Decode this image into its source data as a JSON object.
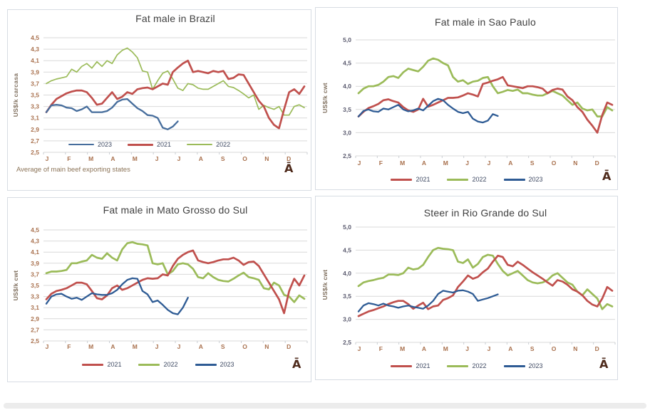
{
  "colors": {
    "red_2021": "#C0504D",
    "green_2022": "#9BBB59",
    "blue_2023_light": "#466D9C",
    "blue_2023_dark": "#2E5B94",
    "grid": "#D9D9D9",
    "axis_tick_mark": "#C9CDD2",
    "axis_title_text": "#80705F",
    "warm_axis_label": "#A9714E",
    "slate_axis_label": "#5A5A6E",
    "legend_text": "#3F4A63",
    "title_text": "#404040",
    "footnote_text": "#8B7357",
    "panel_border": "#D7DCE3",
    "logo_text": "#4E2A1B",
    "scrollbar": "#ECECEC"
  },
  "chart_data": [
    {
      "type": "line",
      "title": "Fat male in Brazil",
      "ylabel": "US$/k carcasa",
      "ylim": [
        2.5,
        4.5
      ],
      "ytick_step": 0.2,
      "ytick_labels": [
        "4,5",
        "4,3",
        "4,1",
        "3,9",
        "3,7",
        "3,5",
        "3,3",
        "3,1",
        "2,9",
        "2,7",
        "2,5"
      ],
      "ytick_color": "#A9714E",
      "xtick_color": "#A9714E",
      "categories": [
        "J",
        "F",
        "M",
        "A",
        "M",
        "J",
        "J",
        "A",
        "S",
        "O",
        "N",
        "D"
      ],
      "legend_position": "inside-bottom-left",
      "footnote": "Average  of main beef exporting states",
      "logo_glyph": "Ā",
      "series": [
        {
          "name": "2023",
          "color": "#466D9C",
          "values": [
            3.2,
            3.32,
            3.33,
            3.32,
            3.28,
            3.27,
            3.22,
            3.25,
            3.3,
            3.2,
            3.2,
            3.2,
            3.22,
            3.28,
            3.38,
            3.42,
            3.43,
            3.35,
            3.27,
            3.22,
            3.15,
            3.14,
            3.1,
            2.93,
            2.9,
            2.95,
            3.04
          ]
        },
        {
          "name": "2021",
          "color": "#C0504D",
          "values": [
            3.2,
            3.33,
            3.43,
            3.48,
            3.53,
            3.56,
            3.58,
            3.58,
            3.55,
            3.45,
            3.33,
            3.35,
            3.45,
            3.55,
            3.43,
            3.47,
            3.55,
            3.52,
            3.6,
            3.62,
            3.63,
            3.6,
            3.65,
            3.7,
            3.68,
            3.9,
            3.98,
            4.05,
            4.1,
            3.9,
            3.92,
            3.9,
            3.88,
            3.92,
            3.9,
            3.92,
            3.78,
            3.8,
            3.86,
            3.85,
            3.7,
            3.55,
            3.4,
            3.3,
            3.1,
            2.98,
            2.92,
            3.25,
            3.55,
            3.6,
            3.52,
            3.65
          ]
        },
        {
          "name": "2022",
          "color": "#9BBB59",
          "values": [
            3.7,
            3.75,
            3.78,
            3.8,
            3.82,
            3.95,
            3.9,
            4.0,
            4.05,
            3.97,
            4.08,
            4.0,
            4.1,
            4.05,
            4.2,
            4.28,
            4.32,
            4.25,
            4.15,
            3.92,
            3.9,
            3.6,
            3.75,
            3.88,
            3.92,
            3.78,
            3.62,
            3.58,
            3.7,
            3.68,
            3.62,
            3.6,
            3.6,
            3.65,
            3.7,
            3.75,
            3.65,
            3.63,
            3.58,
            3.52,
            3.45,
            3.5,
            3.25,
            3.32,
            3.28,
            3.25,
            3.3,
            3.15,
            3.15,
            3.3,
            3.33,
            3.28
          ]
        }
      ]
    },
    {
      "type": "line",
      "title": "Fat male in Sao Paulo",
      "ylabel": "US$/k cwt",
      "ylim": [
        2.5,
        5.0
      ],
      "ytick_step": 0.5,
      "ytick_labels": [
        "5,0",
        "4,5",
        "4,0",
        "3,5",
        "3,0",
        "2,5"
      ],
      "ytick_color": "#5A5A6E",
      "xtick_color": "#A9714E",
      "categories": [
        "J",
        "F",
        "M",
        "A",
        "M",
        "J",
        "J",
        "A",
        "S",
        "O",
        "N",
        "D"
      ],
      "legend_position": "bottom-center",
      "logo_glyph": "Ā",
      "series": [
        {
          "name": "2021",
          "color": "#C0504D",
          "values": [
            3.35,
            3.45,
            3.53,
            3.57,
            3.62,
            3.7,
            3.72,
            3.68,
            3.65,
            3.55,
            3.48,
            3.45,
            3.5,
            3.73,
            3.56,
            3.6,
            3.65,
            3.7,
            3.75,
            3.75,
            3.76,
            3.8,
            3.85,
            3.82,
            3.78,
            4.05,
            4.08,
            4.12,
            4.15,
            4.2,
            4.02,
            4.0,
            3.98,
            3.96,
            4.0,
            4.0,
            3.98,
            3.95,
            3.85,
            3.92,
            3.95,
            3.93,
            3.78,
            3.7,
            3.55,
            3.45,
            3.28,
            3.15,
            3.0,
            3.38,
            3.65,
            3.6
          ]
        },
        {
          "name": "2022",
          "color": "#9BBB59",
          "values": [
            3.85,
            3.95,
            4.0,
            4.0,
            4.03,
            4.1,
            4.2,
            4.22,
            4.18,
            4.3,
            4.38,
            4.35,
            4.32,
            4.42,
            4.55,
            4.6,
            4.57,
            4.5,
            4.45,
            4.2,
            4.1,
            4.13,
            4.05,
            4.1,
            4.12,
            4.18,
            4.2,
            4.0,
            3.85,
            3.88,
            3.92,
            3.9,
            3.93,
            3.85,
            3.85,
            3.82,
            3.8,
            3.8,
            3.85,
            3.9,
            3.85,
            3.8,
            3.7,
            3.6,
            3.65,
            3.52,
            3.48,
            3.5,
            3.35,
            3.35,
            3.55,
            3.48
          ]
        },
        {
          "name": "2023",
          "color": "#2E5B94",
          "values": [
            3.35,
            3.47,
            3.5,
            3.46,
            3.45,
            3.52,
            3.5,
            3.55,
            3.6,
            3.5,
            3.46,
            3.48,
            3.52,
            3.48,
            3.58,
            3.68,
            3.73,
            3.7,
            3.6,
            3.52,
            3.45,
            3.42,
            3.45,
            3.3,
            3.24,
            3.22,
            3.26,
            3.4,
            3.36
          ]
        }
      ]
    },
    {
      "type": "line",
      "title": "Fat male in Mato Grosso do Sul",
      "ylabel": "US$/k cwt",
      "ylim": [
        2.5,
        4.5
      ],
      "ytick_step": 0.2,
      "ytick_labels": [
        "4,5",
        "4,3",
        "4,1",
        "3,9",
        "3,7",
        "3,5",
        "3,3",
        "3,1",
        "2,9",
        "2,7",
        "2,5"
      ],
      "ytick_color": "#A9714E",
      "xtick_color": "#A9714E",
      "categories": [
        "J",
        "F",
        "M",
        "A",
        "M",
        "J",
        "J",
        "A",
        "S",
        "O",
        "N",
        "D"
      ],
      "legend_position": "bottom-center",
      "logo_glyph": "Ā",
      "series": [
        {
          "name": "2021",
          "color": "#C0504D",
          "values": [
            3.25,
            3.35,
            3.4,
            3.42,
            3.45,
            3.5,
            3.55,
            3.55,
            3.52,
            3.4,
            3.27,
            3.25,
            3.32,
            3.45,
            3.5,
            3.42,
            3.45,
            3.5,
            3.55,
            3.6,
            3.63,
            3.62,
            3.63,
            3.7,
            3.68,
            3.85,
            3.98,
            4.05,
            4.1,
            4.13,
            3.95,
            3.92,
            3.9,
            3.92,
            3.95,
            3.97,
            3.97,
            4.0,
            3.95,
            3.87,
            3.92,
            3.93,
            3.85,
            3.7,
            3.55,
            3.4,
            3.25,
            3.0,
            3.4,
            3.62,
            3.5,
            3.68
          ]
        },
        {
          "name": "2022",
          "color": "#9BBB59",
          "values": [
            3.72,
            3.75,
            3.75,
            3.76,
            3.78,
            3.9,
            3.9,
            3.93,
            3.95,
            4.05,
            4.0,
            3.98,
            4.08,
            4.0,
            3.95,
            4.15,
            4.26,
            4.28,
            4.25,
            4.24,
            4.22,
            3.9,
            3.88,
            3.9,
            3.7,
            3.76,
            3.88,
            3.9,
            3.88,
            3.8,
            3.65,
            3.63,
            3.72,
            3.65,
            3.6,
            3.58,
            3.57,
            3.62,
            3.68,
            3.73,
            3.65,
            3.63,
            3.6,
            3.45,
            3.43,
            3.55,
            3.5,
            3.33,
            3.3,
            3.2,
            3.32,
            3.26
          ]
        },
        {
          "name": "2023",
          "color": "#2E5B94",
          "values": [
            3.17,
            3.3,
            3.34,
            3.35,
            3.3,
            3.26,
            3.28,
            3.24,
            3.3,
            3.36,
            3.34,
            3.33,
            3.33,
            3.36,
            3.42,
            3.52,
            3.6,
            3.63,
            3.62,
            3.4,
            3.34,
            3.2,
            3.23,
            3.15,
            3.06,
            3.0,
            2.98,
            3.1,
            3.28
          ]
        }
      ]
    },
    {
      "type": "line",
      "title": "Steer  in Rio Grande do Sul",
      "ylabel": "US$/k cwt",
      "ylim": [
        2.5,
        5.0
      ],
      "ytick_step": 0.5,
      "ytick_labels": [
        "5,0",
        "4,5",
        "4,0",
        "3,5",
        "3,0",
        "2,5"
      ],
      "ytick_color": "#5A5A6E",
      "xtick_color": "#A9714E",
      "categories": [
        "J",
        "F",
        "M",
        "A",
        "M",
        "J",
        "J",
        "A",
        "S",
        "O",
        "N",
        "D"
      ],
      "legend_position": "bottom-center",
      "logo_glyph": "Ā",
      "series": [
        {
          "name": "2021",
          "color": "#C0504D",
          "values": [
            3.07,
            3.12,
            3.17,
            3.2,
            3.24,
            3.28,
            3.33,
            3.37,
            3.4,
            3.4,
            3.33,
            3.23,
            3.3,
            3.36,
            3.22,
            3.28,
            3.3,
            3.42,
            3.46,
            3.52,
            3.7,
            3.82,
            3.95,
            3.88,
            3.92,
            4.02,
            4.1,
            4.25,
            4.38,
            4.35,
            4.18,
            4.15,
            4.25,
            4.18,
            4.1,
            4.02,
            3.95,
            3.88,
            3.8,
            3.73,
            3.85,
            3.82,
            3.75,
            3.65,
            3.6,
            3.52,
            3.4,
            3.32,
            3.28,
            3.45,
            3.7,
            3.62
          ]
        },
        {
          "name": "2022",
          "color": "#9BBB59",
          "values": [
            3.72,
            3.8,
            3.83,
            3.85,
            3.88,
            3.9,
            3.97,
            3.97,
            3.96,
            4.0,
            4.12,
            4.08,
            4.1,
            4.18,
            4.35,
            4.5,
            4.55,
            4.53,
            4.52,
            4.5,
            4.25,
            4.22,
            4.3,
            4.12,
            4.2,
            4.35,
            4.4,
            4.38,
            4.2,
            4.05,
            3.95,
            4.0,
            4.05,
            3.95,
            3.85,
            3.8,
            3.78,
            3.8,
            3.85,
            3.95,
            4.0,
            3.9,
            3.8,
            3.75,
            3.6,
            3.52,
            3.65,
            3.55,
            3.45,
            3.22,
            3.33,
            3.28
          ]
        },
        {
          "name": "2023",
          "color": "#2E5B94",
          "values": [
            3.17,
            3.3,
            3.35,
            3.33,
            3.3,
            3.34,
            3.3,
            3.28,
            3.25,
            3.28,
            3.3,
            3.27,
            3.25,
            3.23,
            3.3,
            3.4,
            3.55,
            3.62,
            3.6,
            3.58,
            3.62,
            3.63,
            3.6,
            3.55,
            3.4,
            3.43,
            3.46,
            3.5,
            3.54
          ]
        }
      ]
    }
  ]
}
